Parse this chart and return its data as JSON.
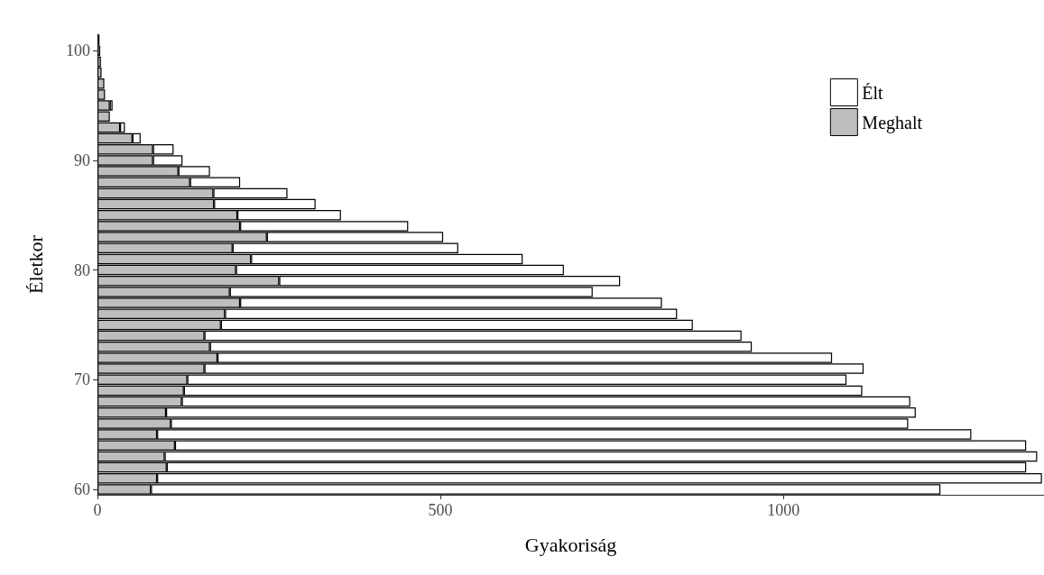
{
  "chart_data": {
    "type": "bar",
    "orientation": "horizontal",
    "stacked": true,
    "xlabel": "Gyakoriság",
    "ylabel": "Életkor",
    "categories": [
      null,
      "100",
      null,
      null,
      null,
      null,
      null,
      null,
      null,
      null,
      null,
      "90",
      null,
      null,
      null,
      null,
      null,
      null,
      null,
      null,
      null,
      "80",
      null,
      null,
      null,
      null,
      null,
      null,
      null,
      null,
      null,
      "70",
      null,
      null,
      null,
      null,
      null,
      null,
      null,
      null,
      null,
      "60"
    ],
    "series": [
      {
        "name": "Meghalt",
        "color": "#bebebe",
        "values": [
          3,
          4,
          5,
          6,
          10,
          11,
          18,
          18,
          33,
          51,
          81,
          81,
          118,
          135,
          169,
          170,
          204,
          208,
          247,
          197,
          224,
          202,
          265,
          193,
          208,
          186,
          180,
          156,
          164,
          175,
          156,
          131,
          126,
          123,
          100,
          107,
          87,
          113,
          98,
          101,
          87,
          78
        ]
      },
      {
        "name": "Élt",
        "color": "#ffffff",
        "values": [
          null,
          null,
          null,
          null,
          null,
          null,
          4,
          null,
          7,
          12,
          30,
          43,
          46,
          73,
          108,
          148,
          151,
          245,
          257,
          329,
          396,
          478,
          497,
          529,
          615,
          659,
          688,
          783,
          790,
          896,
          961,
          961,
          989,
          1062,
          1093,
          1075,
          1187,
          1241,
          1272,
          1253,
          1290,
          1151
        ]
      }
    ],
    "xlim": [
      0,
      1380
    ],
    "xticks": [
      0,
      500,
      1000
    ],
    "grid": false,
    "legend": "top right"
  }
}
